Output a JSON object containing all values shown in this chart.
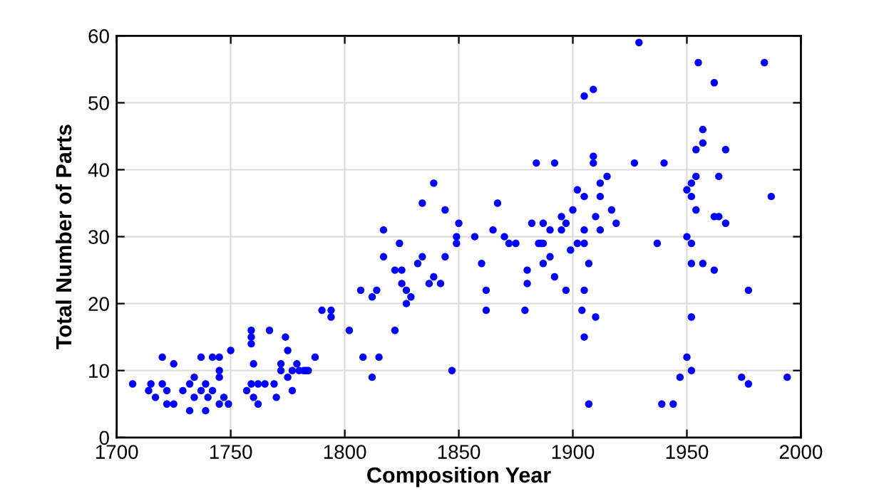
{
  "chart_data": {
    "type": "scatter",
    "xlabel": "Composition Year",
    "ylabel": "Total Number of Parts",
    "xlim": [
      1700,
      2000
    ],
    "xticks": [
      1700,
      1750,
      1800,
      1850,
      1900,
      1950,
      2000
    ],
    "ylim": [
      0,
      60
    ],
    "yticks": [
      0,
      10,
      20,
      30,
      40,
      50,
      60
    ],
    "grid": true,
    "marker": "circle",
    "series": [
      {
        "color": "#0000ff",
        "x": [
          1707,
          1714,
          1715,
          1717,
          1720,
          1720,
          1722,
          1722,
          1725,
          1725,
          1729,
          1732,
          1732,
          1734,
          1734,
          1737,
          1737,
          1739,
          1739,
          1740,
          1742,
          1742,
          1745,
          1745,
          1745,
          1745,
          1747,
          1749,
          1750,
          1757,
          1759,
          1759,
          1759,
          1760,
          1759,
          1760,
          1762,
          1762,
          1765,
          1767,
          1769,
          1770,
          1772,
          1772,
          1774,
          1775,
          1775,
          1777,
          1777,
          1779,
          1780,
          1782,
          1783,
          1784,
          1787,
          1790,
          1794,
          1794,
          1802,
          1807,
          1808,
          1812,
          1812,
          1814,
          1815,
          1817,
          1817,
          1822,
          1822,
          1824,
          1825,
          1825,
          1827,
          1827,
          1829,
          1832,
          1834,
          1834,
          1837,
          1839,
          1839,
          1842,
          1844,
          1844,
          1847,
          1849,
          1849,
          1850,
          1857,
          1860,
          1862,
          1862,
          1865,
          1867,
          1870,
          1872,
          1875,
          1879,
          1880,
          1880,
          1882,
          1884,
          1885,
          1886,
          1887,
          1887,
          1887,
          1890,
          1890,
          1892,
          1892,
          1895,
          1895,
          1897,
          1897,
          1899,
          1900,
          1902,
          1902,
          1904,
          1905,
          1905,
          1905,
          1905,
          1905,
          1907,
          1907,
          1909,
          1909,
          1910,
          1910,
          1929,
          1955,
          1984,
          1962,
          1905,
          1909,
          1957,
          1957,
          1954,
          1967,
          1927,
          1940,
          1915,
          1954,
          1964,
          1912,
          1952,
          1950,
          1912,
          1952,
          1987,
          1917,
          1954,
          1962,
          1964,
          1919,
          1967,
          1912,
          1950,
          1937,
          1952,
          1952,
          1957,
          1962,
          1977,
          1952,
          1950,
          1952,
          1947,
          1974,
          1994,
          1977,
          1939,
          1944
        ],
        "values": [
          8,
          7,
          8,
          6,
          12,
          8,
          7,
          5,
          11,
          5,
          7,
          8,
          4,
          9,
          6,
          7,
          12,
          8,
          4,
          6,
          12,
          7,
          9,
          10,
          12,
          5,
          6,
          5,
          13,
          7,
          16,
          15,
          14,
          11,
          8,
          6,
          8,
          5,
          8,
          16,
          8,
          6,
          11,
          10,
          15,
          13,
          9,
          10,
          7,
          11,
          10,
          10,
          10,
          10,
          12,
          19,
          19,
          18,
          16,
          22,
          12,
          21,
          9,
          22,
          12,
          31,
          27,
          25,
          16,
          29,
          25,
          23,
          20,
          22,
          21,
          26,
          35,
          27,
          23,
          38,
          24,
          23,
          34,
          27,
          10,
          29,
          30,
          32,
          30,
          26,
          22,
          19,
          31,
          35,
          30,
          29,
          29,
          19,
          25,
          23,
          32,
          41,
          29,
          29,
          29,
          32,
          26,
          31,
          27,
          41,
          24,
          33,
          31,
          32,
          22,
          28,
          34,
          29,
          37,
          19,
          36,
          29,
          31,
          22,
          15,
          26,
          5,
          42,
          41,
          18,
          33,
          59,
          56,
          56,
          53,
          51,
          52,
          46,
          44,
          43,
          43,
          41,
          41,
          39,
          39,
          39,
          38,
          38,
          37,
          36,
          36,
          36,
          34,
          34,
          33,
          33,
          32,
          32,
          31,
          30,
          29,
          29,
          26,
          26,
          25,
          22,
          18,
          12,
          10,
          9,
          9,
          9,
          8,
          5,
          5
        ]
      }
    ]
  }
}
